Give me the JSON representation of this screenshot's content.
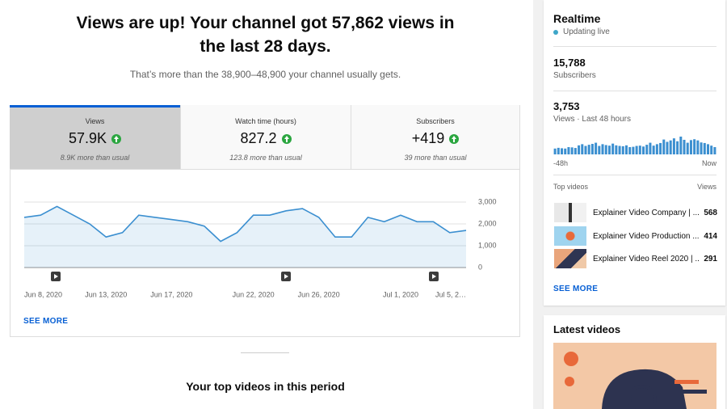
{
  "header": {
    "title": "Views are up! Your channel got 57,862 views in the last 28 days.",
    "subtitle": "That’s more than the 38,900–48,900 your channel usually gets."
  },
  "tabs": [
    {
      "label": "Views",
      "value": "57.9K",
      "note": "8.9K more than usual"
    },
    {
      "label": "Watch time (hours)",
      "value": "827.2",
      "note": "123.8 more than usual"
    },
    {
      "label": "Subscribers",
      "value": "+419",
      "note": "39 more than usual"
    }
  ],
  "chart_data": {
    "type": "line",
    "categories": [
      "Jun 8, 2020",
      null,
      null,
      null,
      null,
      "Jun 13, 2020",
      null,
      null,
      null,
      "Jun 17, 2020",
      null,
      null,
      null,
      null,
      "Jun 22, 2020",
      null,
      null,
      null,
      "Jun 26, 2020",
      null,
      null,
      null,
      null,
      "Jul 1, 2020",
      null,
      null,
      null,
      "Jul 5, 2…"
    ],
    "values": [
      2300,
      2400,
      2800,
      2400,
      2000,
      1400,
      1600,
      2400,
      2300,
      2200,
      2100,
      1900,
      1200,
      1600,
      2400,
      2400,
      2600,
      2700,
      2300,
      1400,
      1400,
      2300,
      2100,
      2400,
      2100,
      2100,
      1600,
      1700
    ],
    "color": "#3b8fd0",
    "ylim": [
      0,
      3000
    ],
    "yticks": [
      0,
      {
        "value": 1000,
        "label": "1,000"
      },
      {
        "value": 2000,
        "label": "2,000"
      },
      {
        "value": 3000,
        "label": "3,000"
      }
    ],
    "grid": true
  },
  "see_more": "SEE MORE",
  "section_title": "Your top videos in this period",
  "realtime": {
    "title": "Realtime",
    "status": "Updating live",
    "subscribers": "15,788",
    "subscribers_label": "Subscribers",
    "views": "3,753",
    "views_label": "Views · Last 48 hours",
    "bars": {
      "type": "bar",
      "color": "#3b8fd0",
      "values": [
        40,
        45,
        42,
        40,
        50,
        48,
        44,
        62,
        70,
        58,
        66,
        72,
        80,
        58,
        70,
        64,
        60,
        74,
        62,
        58,
        56,
        62,
        50,
        52,
        58,
        60,
        54,
        66,
        80,
        60,
        70,
        78,
        102,
        86,
        96,
        110,
        90,
        122,
        100,
        80,
        98,
        104,
        96,
        82,
        78,
        70,
        60,
        50
      ]
    },
    "start_label": "-48h",
    "end_label": "Now",
    "top_videos_label": "Top videos",
    "views_column": "Views",
    "videos": [
      {
        "title": "Explainer Video Company | ...",
        "views": "568"
      },
      {
        "title": "Explainer Video Production ...",
        "views": "414"
      },
      {
        "title": "Explainer Video Reel 2020 | ...",
        "views": "291"
      }
    ],
    "see_more": "SEE MORE"
  },
  "latest": {
    "title": "Latest videos"
  }
}
